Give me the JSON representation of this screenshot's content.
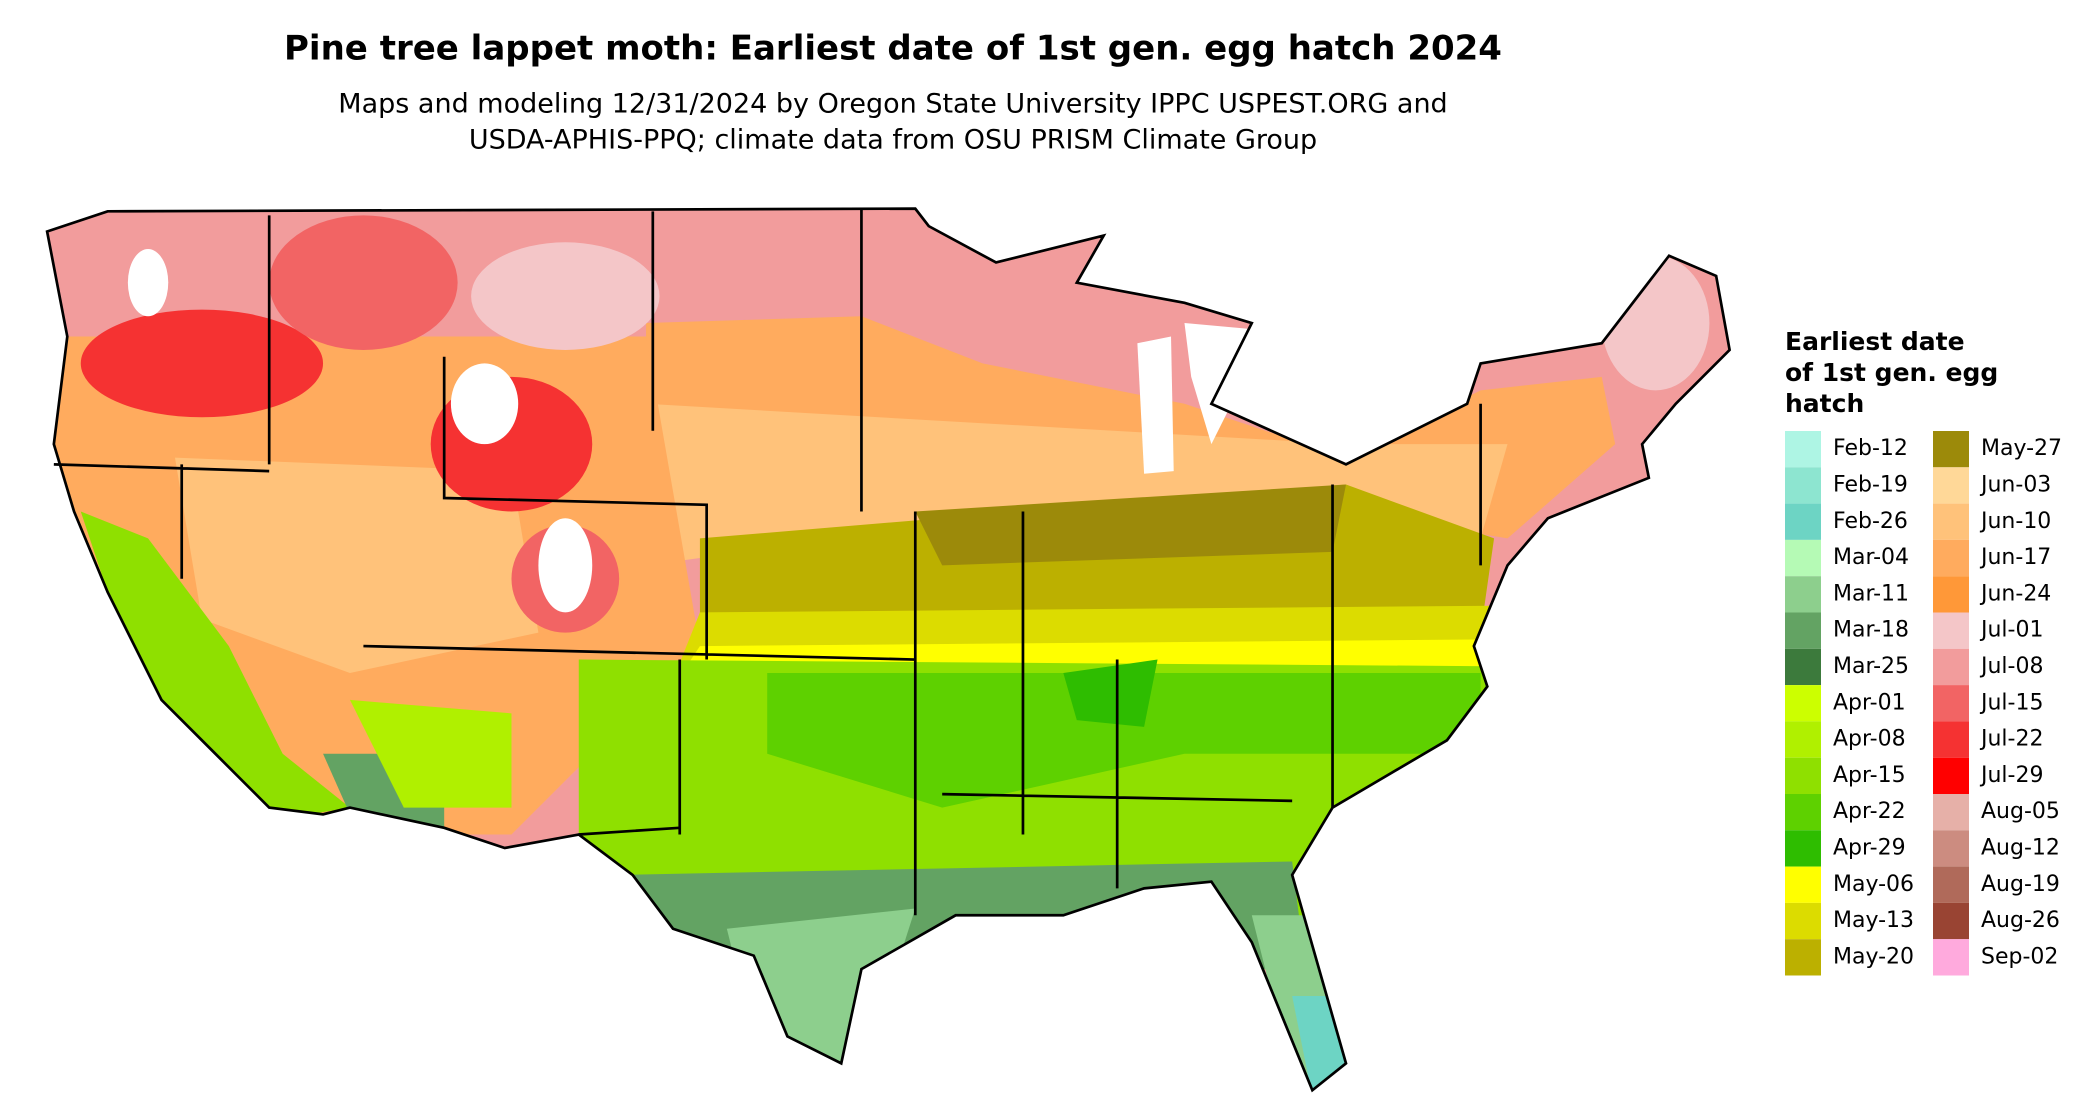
{
  "title": "Pine tree lappet moth: Earliest date of 1st gen. egg hatch 2024",
  "subtitle": [
    "Maps and modeling 12/31/2024 by Oregon State University IPPC USPEST.ORG and",
    "USDA-APHIS-PPQ; climate data from OSU PRISM Climate Group"
  ],
  "legend": {
    "title": [
      "Earliest date",
      "of 1st gen. egg",
      "hatch"
    ],
    "items": [
      {
        "label": "Feb-12",
        "color": "#aef5e4"
      },
      {
        "label": "Feb-19",
        "color": "#8de5d0"
      },
      {
        "label": "Feb-26",
        "color": "#6dd4c4"
      },
      {
        "label": "Mar-04",
        "color": "#b5fab5"
      },
      {
        "label": "Mar-11",
        "color": "#8dcf8d"
      },
      {
        "label": "Mar-18",
        "color": "#63a363"
      },
      {
        "label": "Mar-25",
        "color": "#3c7a3c"
      },
      {
        "label": "Apr-01",
        "color": "#ccff00"
      },
      {
        "label": "Apr-08",
        "color": "#b0f000"
      },
      {
        "label": "Apr-15",
        "color": "#8fe000"
      },
      {
        "label": "Apr-22",
        "color": "#5ed100"
      },
      {
        "label": "Apr-29",
        "color": "#2ebd00"
      },
      {
        "label": "May-06",
        "color": "#ffff00"
      },
      {
        "label": "May-13",
        "color": "#dcdc00"
      },
      {
        "label": "May-20",
        "color": "#bcb000"
      },
      {
        "label": "May-27",
        "color": "#9c8a0a"
      },
      {
        "label": "Jun-03",
        "color": "#ffd898"
      },
      {
        "label": "Jun-10",
        "color": "#ffc27a"
      },
      {
        "label": "Jun-17",
        "color": "#ffab5e"
      },
      {
        "label": "Jun-24",
        "color": "#ff9838"
      },
      {
        "label": "Jul-01",
        "color": "#f4c6c8"
      },
      {
        "label": "Jul-08",
        "color": "#f29c9c"
      },
      {
        "label": "Jul-15",
        "color": "#f26464"
      },
      {
        "label": "Jul-22",
        "color": "#f53232"
      },
      {
        "label": "Jul-29",
        "color": "#ff0000"
      },
      {
        "label": "Aug-05",
        "color": "#e6b0a8"
      },
      {
        "label": "Aug-12",
        "color": "#cc8c80"
      },
      {
        "label": "Aug-19",
        "color": "#b06a5a"
      },
      {
        "label": "Aug-26",
        "color": "#994433"
      },
      {
        "label": "Sep-02",
        "color": "#ffaadd"
      }
    ]
  }
}
